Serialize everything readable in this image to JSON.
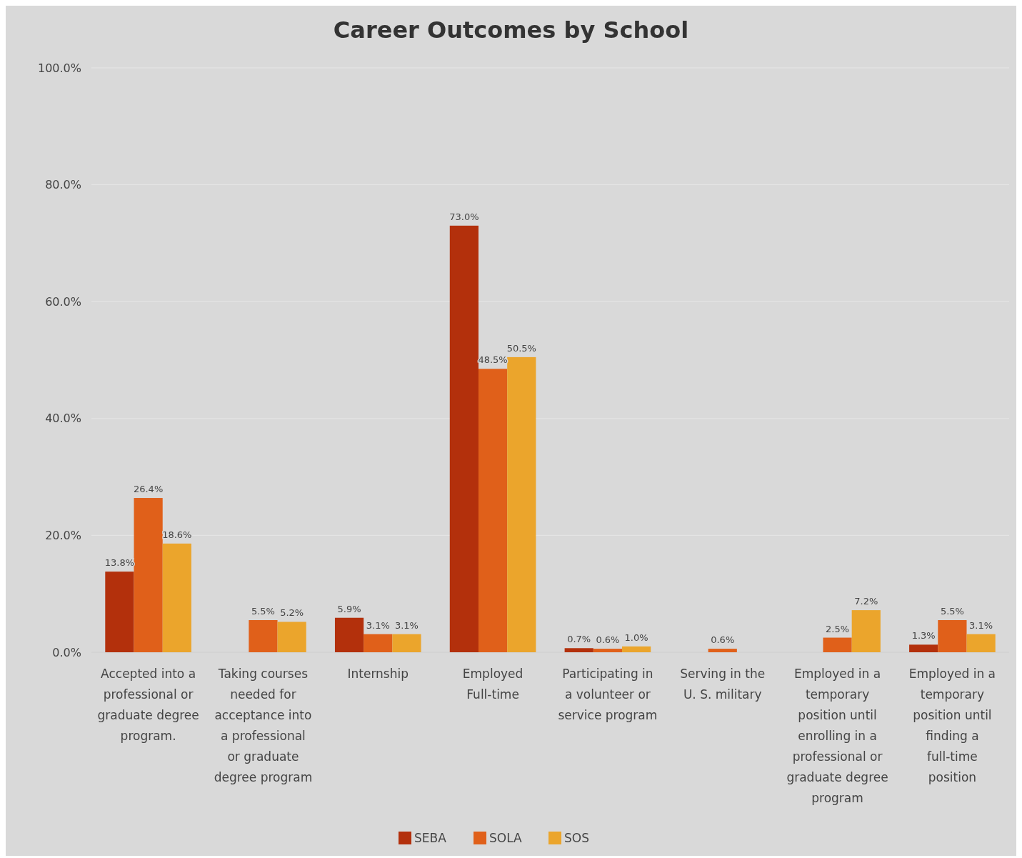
{
  "chart_data": {
    "type": "bar",
    "title": "Career Outcomes by School",
    "categories": [
      "Accepted into a professional or graduate degree program.",
      "Taking courses needed for acceptance into a professional or graduate degree program",
      "Internship",
      "Employed Full-time",
      "Participating in a volunteer or service program",
      "Serving in the U. S. military",
      "Employed in a temporary position until enrolling in a professional or graduate degree program",
      "Employed in a temporary position until finding a full-time position"
    ],
    "series": [
      {
        "name": "SEBA",
        "color": "#b3300c",
        "values": [
          13.8,
          null,
          5.9,
          73.0,
          0.7,
          null,
          null,
          1.3
        ],
        "value_labels": [
          "13.8%",
          null,
          "5.9%",
          "73.0%",
          "0.7%",
          null,
          null,
          "1.3%"
        ]
      },
      {
        "name": "SOLA",
        "color": "#e0601a",
        "values": [
          26.4,
          5.5,
          3.1,
          48.5,
          0.6,
          0.6,
          2.5,
          5.5
        ],
        "value_labels": [
          "26.4%",
          "5.5%",
          "3.1%",
          "48.5%",
          "0.6%",
          "0.6%",
          "2.5%",
          "5.5%"
        ]
      },
      {
        "name": "SOS",
        "color": "#eba52c",
        "values": [
          18.6,
          5.2,
          3.1,
          50.5,
          1.0,
          null,
          7.2,
          3.1
        ],
        "value_labels": [
          "18.6%",
          "5.2%",
          "3.1%",
          "50.5%",
          "1.0%",
          null,
          "7.2%",
          "3.1%"
        ]
      }
    ],
    "ylim": [
      0,
      100
    ],
    "yticks": [
      {
        "value": 0,
        "label": "0.0%"
      },
      {
        "value": 20,
        "label": "20.0%"
      },
      {
        "value": 40,
        "label": "40.0%"
      },
      {
        "value": 60,
        "label": "60.0%"
      },
      {
        "value": 80,
        "label": "80.0%"
      },
      {
        "value": 100,
        "label": "100.0%"
      }
    ],
    "grid": "y",
    "legend": "bottom"
  }
}
